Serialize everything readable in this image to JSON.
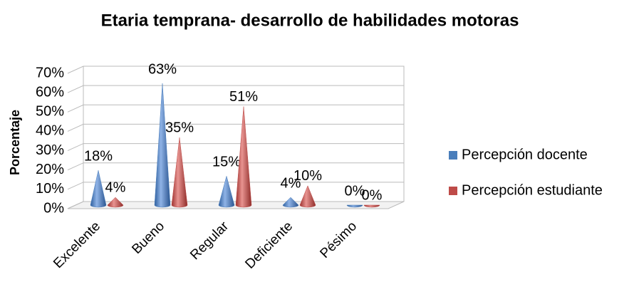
{
  "chart_data": {
    "type": "cone",
    "title": "Etaria temprana- desarrollo de habilidades motoras",
    "y_label": "Porcentaje",
    "categories": [
      "Excelente",
      "Bueno",
      "Regular",
      "Deficiente",
      "Pésimo"
    ],
    "series": [
      {
        "name": "Percepción docente",
        "color": "#4a7ebb",
        "values": [
          18,
          63,
          15,
          4,
          0
        ],
        "value_labels": [
          "18%",
          "63%",
          "15%",
          "4%",
          "0%"
        ]
      },
      {
        "name": "Percepción estudiante",
        "color": "#be4b48",
        "values": [
          4,
          35,
          51,
          10,
          0
        ],
        "value_labels": [
          "4%",
          "35%",
          "51%",
          "10%",
          "0%"
        ]
      }
    ],
    "ylim": [
      0,
      70
    ],
    "yticks": [
      {
        "value": 0,
        "label": "0%"
      },
      {
        "value": 10,
        "label": "10%"
      },
      {
        "value": 20,
        "label": "20%"
      },
      {
        "value": 30,
        "label": "30%"
      },
      {
        "value": 40,
        "label": "40%"
      },
      {
        "value": 50,
        "label": "50%"
      },
      {
        "value": 60,
        "label": "60%"
      },
      {
        "value": 70,
        "label": "70%"
      }
    ],
    "grid": true,
    "legend": "right"
  }
}
